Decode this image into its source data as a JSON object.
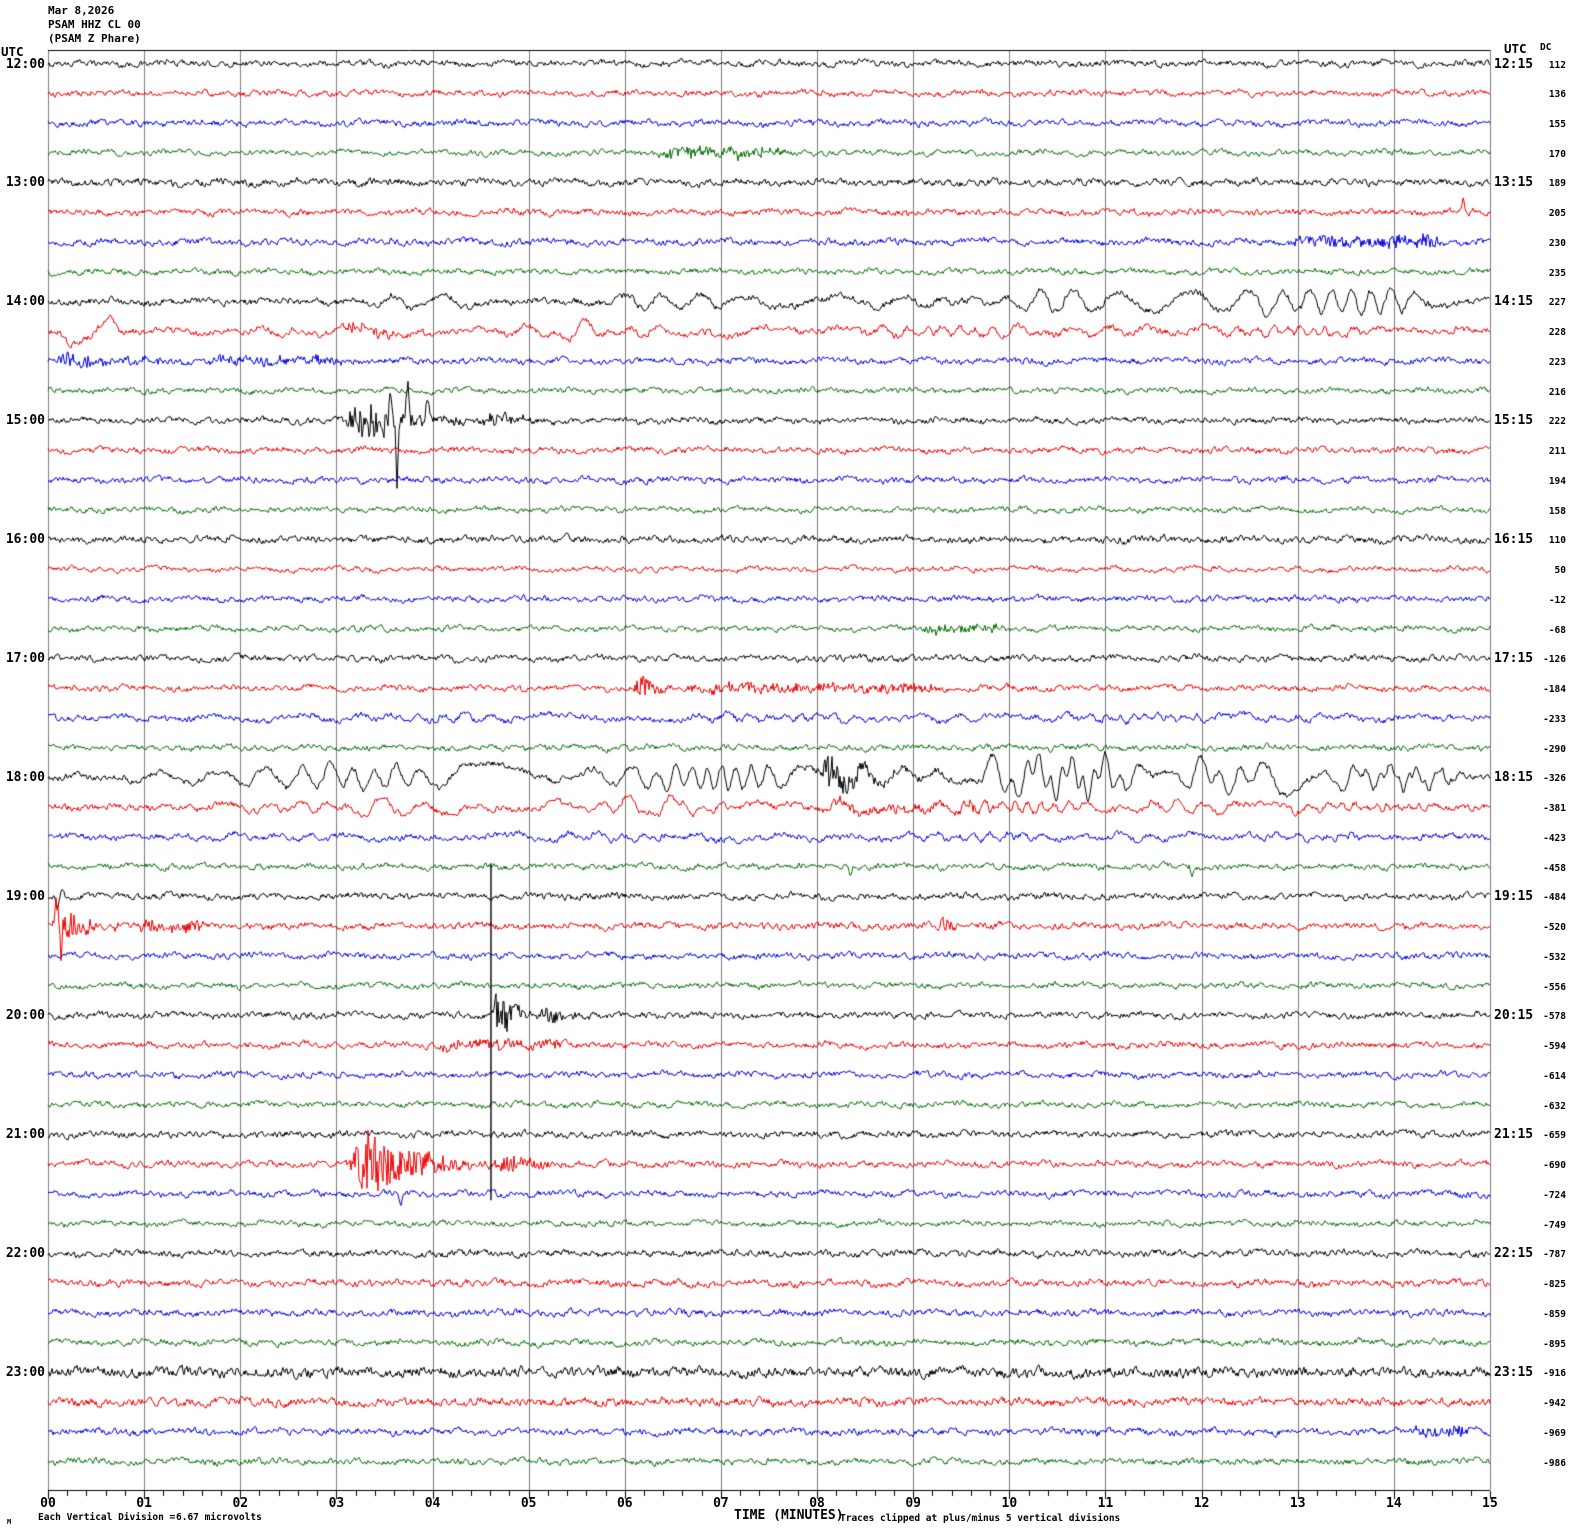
{
  "header": {
    "date": "Mar 8,2026",
    "station": "PSAM HHZ CL 00",
    "location": "(PSAM Z Phare)"
  },
  "axis": {
    "left_utc_label": "UTC",
    "right_utc_label": "UTC",
    "dc_header": "DC",
    "xlabel": "TIME (MINUTES)",
    "minute_labels": [
      "00",
      "01",
      "02",
      "03",
      "04",
      "05",
      "06",
      "07",
      "08",
      "09",
      "10",
      "11",
      "12",
      "13",
      "14",
      "15"
    ],
    "left_times": [
      "12:00",
      "13:00",
      "14:00",
      "15:00",
      "16:00",
      "17:00",
      "18:00",
      "19:00",
      "20:00",
      "21:00",
      "22:00",
      "23:00"
    ],
    "right_times": [
      "12:15",
      "13:15",
      "14:15",
      "15:15",
      "16:15",
      "17:15",
      "18:15",
      "19:15",
      "20:15",
      "21:15",
      "22:15",
      "23:15"
    ]
  },
  "footer": {
    "unit_symbol": "M",
    "scale_text": "Each Vertical Division =",
    "scale_value": "6.67 microvolts",
    "clip_note": "Traces clipped at plus/minus 5 vertical divisions"
  },
  "chart_data": {
    "type": "seismogram-helicorder",
    "station": "PSAM HHZ CL 00",
    "date": "Mar 8,2026",
    "minutes_per_line": 15,
    "lines": 48,
    "x_range_minutes": [
      0,
      15
    ],
    "vertical_division_microvolts": 6.67,
    "clip_divisions": 5,
    "trace_colors": [
      "#000000",
      "#ee0000",
      "#0000e0",
      "#066d06"
    ],
    "grid_color": "#7d7d7d",
    "traces": [
      {
        "t": "12:00",
        "dc": 112,
        "n": 3.0
      },
      {
        "t": "12:15",
        "dc": 136,
        "n": 2.8
      },
      {
        "t": "12:30",
        "dc": 155,
        "n": 3.0
      },
      {
        "t": "12:45",
        "dc": 170,
        "n": 2.6
      },
      {
        "t": "13:00",
        "dc": 189,
        "n": 3.4
      },
      {
        "t": "13:15",
        "dc": 205,
        "n": 3.0
      },
      {
        "t": "13:30",
        "dc": 230,
        "n": 3.2
      },
      {
        "t": "13:45",
        "dc": 235,
        "n": 2.7
      },
      {
        "t": "14:00",
        "dc": 227,
        "n": 3.4
      },
      {
        "t": "14:15",
        "dc": 228,
        "n": 3.2
      },
      {
        "t": "14:30",
        "dc": 223,
        "n": 3.0
      },
      {
        "t": "14:45",
        "dc": 216,
        "n": 2.7
      },
      {
        "t": "15:00",
        "dc": 222,
        "n": 3.0
      },
      {
        "t": "15:15",
        "dc": 211,
        "n": 2.9
      },
      {
        "t": "15:30",
        "dc": 194,
        "n": 3.0
      },
      {
        "t": "15:45",
        "dc": 158,
        "n": 2.6
      },
      {
        "t": "16:00",
        "dc": 110,
        "n": 3.4
      },
      {
        "t": "16:15",
        "dc": 50,
        "n": 2.4
      },
      {
        "t": "16:30",
        "dc": -12,
        "n": 2.8
      },
      {
        "t": "16:45",
        "dc": -68,
        "n": 2.6
      },
      {
        "t": "17:00",
        "dc": -126,
        "n": 3.0
      },
      {
        "t": "17:15",
        "dc": -184,
        "n": 2.9
      },
      {
        "t": "17:30",
        "dc": -233,
        "n": 3.0
      },
      {
        "t": "17:45",
        "dc": -290,
        "n": 2.8
      },
      {
        "t": "18:00",
        "dc": -326,
        "n": 3.2
      },
      {
        "t": "18:15",
        "dc": -381,
        "n": 3.2
      },
      {
        "t": "18:30",
        "dc": -423,
        "n": 3.0
      },
      {
        "t": "18:45",
        "dc": -458,
        "n": 2.8
      },
      {
        "t": "19:00",
        "dc": -484,
        "n": 3.2
      },
      {
        "t": "19:15",
        "dc": -520,
        "n": 3.2
      },
      {
        "t": "19:30",
        "dc": -532,
        "n": 3.0
      },
      {
        "t": "19:45",
        "dc": -556,
        "n": 2.7
      },
      {
        "t": "20:00",
        "dc": -578,
        "n": 3.0
      },
      {
        "t": "20:15",
        "dc": -594,
        "n": 3.0
      },
      {
        "t": "20:30",
        "dc": -614,
        "n": 3.0
      },
      {
        "t": "20:45",
        "dc": -632,
        "n": 2.7
      },
      {
        "t": "21:00",
        "dc": -659,
        "n": 3.2
      },
      {
        "t": "21:15",
        "dc": -690,
        "n": 3.0
      },
      {
        "t": "21:30",
        "dc": -724,
        "n": 3.0
      },
      {
        "t": "21:45",
        "dc": -749,
        "n": 2.7
      },
      {
        "t": "22:00",
        "dc": -787,
        "n": 3.3
      },
      {
        "t": "22:15",
        "dc": -825,
        "n": 3.4
      },
      {
        "t": "22:30",
        "dc": -859,
        "n": 3.2
      },
      {
        "t": "22:45",
        "dc": -895,
        "n": 3.0
      },
      {
        "t": "23:00",
        "dc": -916,
        "n": 5.0
      },
      {
        "t": "23:15",
        "dc": -942,
        "n": 4.0
      },
      {
        "t": "23:30",
        "dc": -969,
        "n": 3.3
      },
      {
        "t": "23:45",
        "dc": -986,
        "n": 3.0
      }
    ],
    "events": [
      {
        "i": 3,
        "k": "noise",
        "t0": 6.3,
        "t1": 7.7,
        "a": 4.5
      },
      {
        "i": 5,
        "k": "spike",
        "t0": 14.72,
        "a": 12
      },
      {
        "i": 5,
        "k": "spike",
        "t0": 14.78,
        "a": -8
      },
      {
        "i": 6,
        "k": "noise",
        "t0": 12.9,
        "t1": 14.6,
        "a": 5
      },
      {
        "i": 8,
        "k": "lf",
        "t0": 3.2,
        "t1": 4.6,
        "p": 0.45,
        "a": 6
      },
      {
        "i": 8,
        "k": "lf",
        "t0": 5.5,
        "t1": 9.5,
        "p": 0.5,
        "a": 6
      },
      {
        "i": 8,
        "k": "lf",
        "t0": 9.6,
        "t1": 14.8,
        "p": 0.42,
        "a": 11
      },
      {
        "i": 9,
        "k": "lf",
        "t0": 0.05,
        "t1": 0.75,
        "p": 0.7,
        "a": 14
      },
      {
        "i": 9,
        "k": "lf",
        "t0": 0.8,
        "t1": 15,
        "p": 0.55,
        "a": 4
      },
      {
        "i": 9,
        "k": "hf",
        "t0": 3.0,
        "t1": 4.15,
        "a": 6.5
      },
      {
        "i": 9,
        "k": "lf",
        "t0": 5.2,
        "t1": 6.0,
        "p": 0.5,
        "a": 7
      },
      {
        "i": 10,
        "k": "hf",
        "t0": 0.0,
        "t1": 1.6,
        "a": 7
      },
      {
        "i": 10,
        "k": "noise",
        "t0": 1.6,
        "t1": 3.2,
        "a": 3.5
      },
      {
        "i": 12,
        "k": "hf",
        "t0": 3.05,
        "t1": 4.45,
        "a": 23
      },
      {
        "i": 12,
        "k": "hf",
        "t0": 4.45,
        "t1": 5.7,
        "a": 6
      },
      {
        "i": 12,
        "k": "spike",
        "t0": 3.63,
        "a": -72,
        "w": 0.02
      },
      {
        "i": 12,
        "k": "spike",
        "t0": 3.56,
        "a": 36
      },
      {
        "i": 12,
        "k": "spike",
        "t0": 3.74,
        "a": 40
      },
      {
        "i": 12,
        "k": "spike",
        "t0": 3.95,
        "a": 26
      },
      {
        "i": 19,
        "k": "noise",
        "t0": 9.0,
        "t1": 10.0,
        "a": 3.5
      },
      {
        "i": 21,
        "k": "hf",
        "t0": 6.08,
        "t1": 6.6,
        "a": 13
      },
      {
        "i": 21,
        "k": "noise",
        "t0": 6.6,
        "t1": 9.3,
        "a": 3.5
      },
      {
        "i": 22,
        "k": "lf",
        "t0": 0,
        "t1": 15,
        "p": 0.5,
        "a": 2.5
      },
      {
        "i": 24,
        "k": "lf",
        "t0": 0.15,
        "t1": 15,
        "p": 0.42,
        "a": 10
      },
      {
        "i": 24,
        "k": "lf",
        "t0": 2.5,
        "t1": 7,
        "p": 0.9,
        "a": 4
      },
      {
        "i": 24,
        "k": "hf",
        "t0": 7.95,
        "t1": 8.95,
        "a": 20
      },
      {
        "i": 24,
        "k": "lf",
        "t0": 8.95,
        "t1": 11.4,
        "p": 0.52,
        "a": 14
      },
      {
        "i": 24,
        "k": "lf",
        "t0": 11.4,
        "t1": 15,
        "p": 0.45,
        "a": 9
      },
      {
        "i": 25,
        "k": "lf",
        "t0": 0,
        "t1": 15,
        "p": 0.5,
        "a": 4
      },
      {
        "i": 25,
        "k": "lf",
        "t0": 2.9,
        "t1": 4.5,
        "p": 0.5,
        "a": 7
      },
      {
        "i": 25,
        "k": "lf",
        "t0": 5.85,
        "t1": 6.75,
        "p": 0.55,
        "a": 10
      },
      {
        "i": 25,
        "k": "noise",
        "t0": 8,
        "t1": 10,
        "a": 3.5
      },
      {
        "i": 26,
        "k": "lf",
        "t0": 0,
        "t1": 15,
        "p": 0.6,
        "a": 2.5
      },
      {
        "i": 27,
        "k": "spike",
        "t0": 8.35,
        "a": -9
      },
      {
        "i": 27,
        "k": "spike",
        "t0": 11.9,
        "a": -8
      },
      {
        "i": 28,
        "k": "spike",
        "t0": 0.1,
        "a": -12
      },
      {
        "i": 28,
        "k": "spike",
        "t0": 0.15,
        "a": 10
      },
      {
        "i": 29,
        "k": "hf",
        "t0": 0.02,
        "t1": 0.8,
        "a": 20
      },
      {
        "i": 29,
        "k": "spike",
        "t0": 0.09,
        "a": 28
      },
      {
        "i": 29,
        "k": "spike",
        "t0": 0.13,
        "a": -30
      },
      {
        "i": 29,
        "k": "noise",
        "t0": 0.8,
        "t1": 1.7,
        "a": 5
      },
      {
        "i": 29,
        "k": "hf",
        "t0": 9.25,
        "t1": 9.6,
        "a": 8
      },
      {
        "i": 32,
        "k": "vline",
        "t0": 4.608,
        "d0": -152,
        "d1": 185
      },
      {
        "i": 32,
        "k": "hf",
        "t0": 4.6,
        "t1": 5.1,
        "a": 28
      },
      {
        "i": 32,
        "k": "hf",
        "t0": 5.1,
        "t1": 5.8,
        "a": 7
      },
      {
        "i": 33,
        "k": "noise",
        "t0": 4.0,
        "t1": 5.4,
        "a": 4
      },
      {
        "i": 37,
        "k": "hf",
        "t0": 3.1,
        "t1": 4.6,
        "a": 36
      },
      {
        "i": 37,
        "k": "hf",
        "t0": 4.6,
        "t1": 5.6,
        "a": 9
      },
      {
        "i": 38,
        "k": "spike",
        "t0": 3.67,
        "a": -14
      },
      {
        "i": 46,
        "k": "noise",
        "t0": 14.1,
        "t1": 14.9,
        "a": 4
      }
    ]
  }
}
